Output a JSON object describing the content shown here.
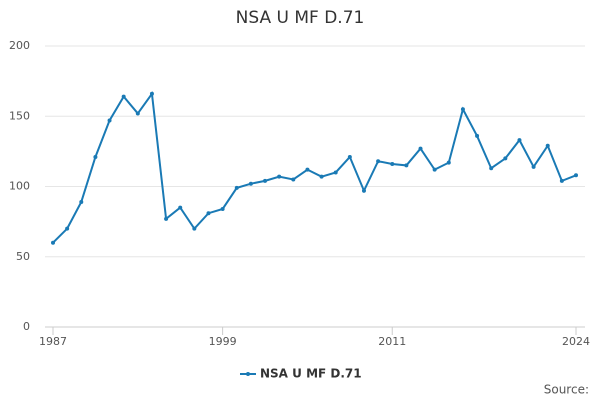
{
  "chart_data": {
    "type": "line",
    "title": "NSA U MF D.71",
    "x": [
      1987,
      1988,
      1989,
      1990,
      1991,
      1992,
      1993,
      1994,
      1995,
      1996,
      1997,
      1998,
      1999,
      2000,
      2001,
      2002,
      2003,
      2004,
      2005,
      2006,
      2007,
      2008,
      2009,
      2010,
      2011,
      2012,
      2013,
      2014,
      2015,
      2016,
      2017,
      2018,
      2019,
      2020,
      2021,
      2022,
      2023,
      2024
    ],
    "series": [
      {
        "name": "NSA U MF D.71",
        "color": "#1a7ab5",
        "values": [
          60,
          70,
          89,
          121,
          147,
          164,
          152,
          166,
          77,
          85,
          70,
          81,
          84,
          99,
          102,
          104,
          107,
          105,
          112,
          107,
          110,
          121,
          97,
          118,
          116,
          115,
          127,
          112,
          117,
          155,
          136,
          113,
          120,
          133,
          114,
          129,
          104,
          108
        ]
      }
    ],
    "xlim": [
      1987,
      2024
    ],
    "xticks": [
      1987,
      1999,
      2011,
      2024
    ],
    "ylim": [
      0,
      200
    ],
    "yticks": [
      0,
      50,
      100,
      150,
      200
    ],
    "grid": true,
    "source": "Source:"
  }
}
